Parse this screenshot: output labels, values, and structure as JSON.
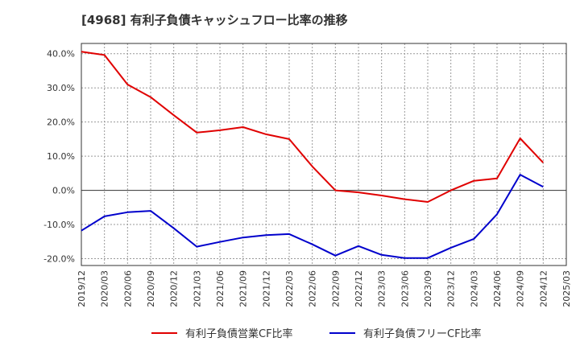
{
  "chart_data": {
    "type": "line",
    "title": "[4968]  有利子負債キャッシュフロー比率の推移",
    "xlabel": "",
    "ylabel": "",
    "ylim": [
      -22,
      43
    ],
    "y_ticks": [
      "40.0%",
      "30.0%",
      "20.0%",
      "10.0%",
      "0.0%",
      "-10.0%",
      "-20.0%"
    ],
    "y_tick_values": [
      40,
      30,
      20,
      10,
      0,
      -10,
      -20
    ],
    "categories": [
      "2019/12",
      "2020/03",
      "2020/06",
      "2020/09",
      "2020/12",
      "2021/03",
      "2021/06",
      "2021/09",
      "2021/12",
      "2022/03",
      "2022/06",
      "2022/09",
      "2022/12",
      "2023/03",
      "2023/06",
      "2023/09",
      "2023/12",
      "2024/03",
      "2024/06",
      "2024/09",
      "2024/12",
      "2025/03"
    ],
    "grid": true,
    "legend_position": "bottom",
    "series": [
      {
        "name": "有利子負債営業CF比率",
        "color": "#e00000",
        "values": [
          40.6,
          39.6,
          31.0,
          27.3,
          22.0,
          16.9,
          17.6,
          18.5,
          16.4,
          15.0,
          7.0,
          0.0,
          -0.6,
          -1.5,
          -2.6,
          -3.4,
          0.0,
          2.8,
          3.5,
          15.2,
          8.1,
          null
        ]
      },
      {
        "name": "有利子負債フリーCF比率",
        "color": "#0000cc",
        "values": [
          -11.8,
          -7.6,
          -6.4,
          -6.0,
          -11.1,
          -16.5,
          -15.1,
          -13.8,
          -13.1,
          -12.8,
          -15.8,
          -19.1,
          -16.3,
          -18.9,
          -19.8,
          -19.8,
          -16.8,
          -14.2,
          -7.0,
          4.6,
          1.0,
          null
        ]
      }
    ]
  }
}
